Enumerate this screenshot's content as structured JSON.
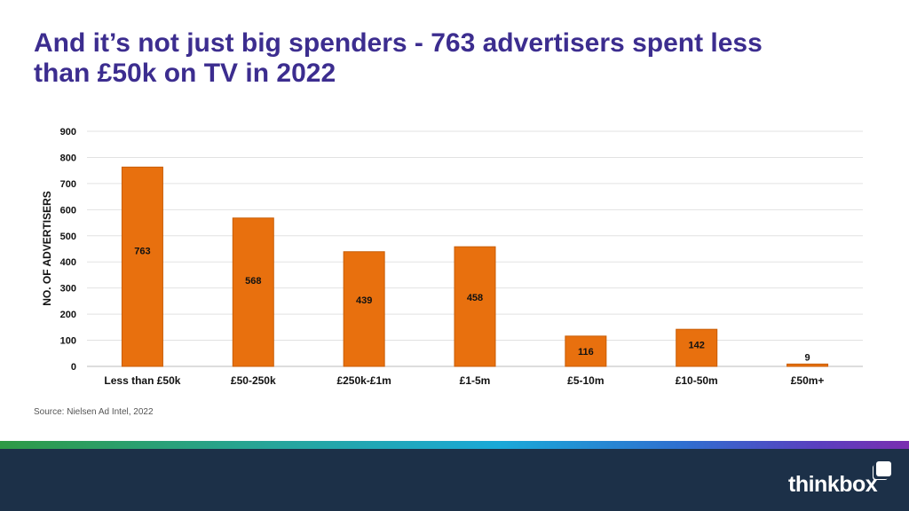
{
  "title": {
    "line1": "And it’s not just big spenders - 763 advertisers spent less",
    "line2": "than £50k on TV in 2022"
  },
  "colors": {
    "bar": "#e8700e",
    "bar_stroke": "#c85d06",
    "title": "#3c2d8f",
    "footer": "#1c3048"
  },
  "chart_data": {
    "type": "bar",
    "categories": [
      "Less than £50k",
      "£50-250k",
      "£250k-£1m",
      "£1-5m",
      "£5-10m",
      "£10-50m",
      "£50m+"
    ],
    "values": [
      763,
      568,
      439,
      458,
      116,
      142,
      9
    ],
    "data_labels": [
      "763",
      "568",
      "439",
      "458",
      "116",
      "142",
      "9"
    ],
    "ylabel": "NO. OF ADVERTISERS",
    "xlabel": "",
    "ylim": [
      0,
      900
    ],
    "yticks": [
      0,
      100,
      200,
      300,
      400,
      500,
      600,
      700,
      800,
      900
    ],
    "grid": true,
    "legend": "none"
  },
  "source": "Source: Nielsen Ad Intel, 2022",
  "logo": "thinkbox"
}
